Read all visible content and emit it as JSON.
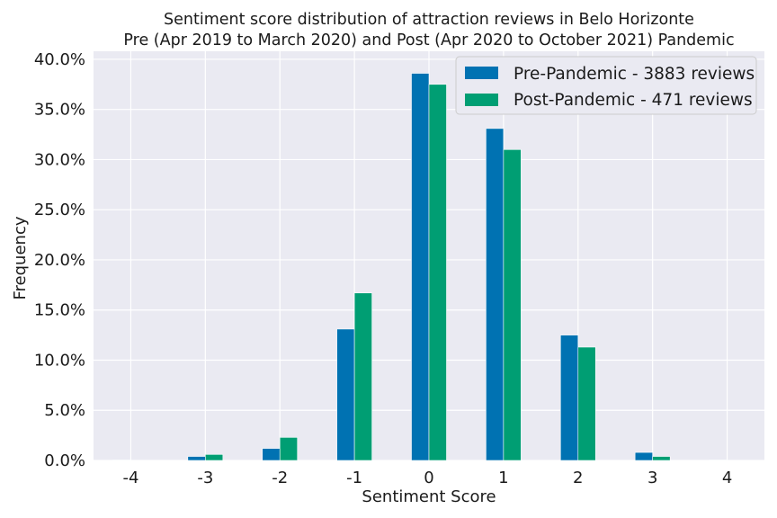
{
  "chart_data": {
    "type": "bar",
    "title": "Sentiment score distribution of attraction reviews in Belo Horizonte",
    "subtitle": "Pre (Apr 2019 to March 2020) and Post (Apr 2020 to October 2021) Pandemic",
    "xlabel": "Sentiment Score",
    "ylabel": "Frequency",
    "categories": [
      "-4",
      "-3",
      "-2",
      "-1",
      "0",
      "1",
      "2",
      "3",
      "4"
    ],
    "x": [
      -4,
      -3,
      -2,
      -1,
      0,
      1,
      2,
      3,
      4
    ],
    "xlim": [
      -4.5,
      4.5
    ],
    "ylim": [
      0,
      40.8
    ],
    "y_ticks": [
      0,
      5,
      10,
      15,
      20,
      25,
      30,
      35,
      40
    ],
    "y_tick_labels": [
      "0.0%",
      "5.0%",
      "10.0%",
      "15.0%",
      "20.0%",
      "25.0%",
      "30.0%",
      "35.0%",
      "40.0%"
    ],
    "series": [
      {
        "name": "Pre-Pandemic - 3883 reviews",
        "color": "#0072b2",
        "values": [
          0.05,
          0.4,
          1.2,
          13.1,
          38.6,
          33.1,
          12.5,
          0.8,
          0.05
        ]
      },
      {
        "name": "Post-Pandemic - 471 reviews",
        "color": "#009e73",
        "values": [
          0.0,
          0.6,
          2.3,
          16.7,
          37.5,
          31.0,
          11.3,
          0.4,
          0.0
        ]
      }
    ],
    "grid": true,
    "legend_position": "top-right",
    "background": "#eaeaf2"
  }
}
